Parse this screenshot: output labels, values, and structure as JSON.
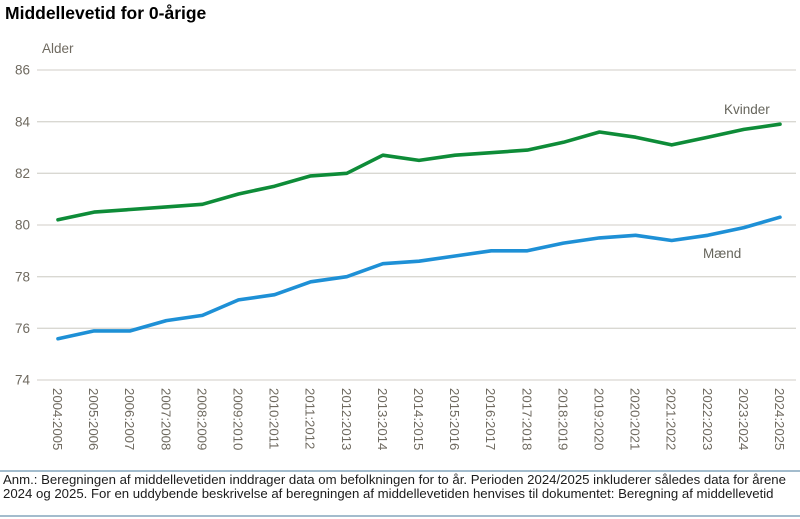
{
  "title": "Middellevetid for 0-årige",
  "footnote": "Anm.: Beregningen af middellevetiden inddrager data om befolkningen for to år. Perioden 2024/2025 inkluderer således data for årene 2024 og 2025. For en uddybende beskrivelse af beregningen af middellevetiden henvises til dokumentet: Beregning af middellevetid",
  "colors": {
    "kvinder_line": "#0e8c38",
    "maend_line": "#1e90d6",
    "gridline": "#d9d8d2",
    "axis_text": "#6f6a60",
    "series_label_text": "#66655c",
    "separator": "#a3bccd",
    "title_text": "#000000"
  },
  "chart_data": {
    "type": "line",
    "title": "Middellevetid for 0-årige",
    "xlabel": "",
    "ylabel": "Alder",
    "ylim": [
      74,
      86
    ],
    "y_ticks": [
      86,
      84,
      82,
      80,
      78,
      76,
      74
    ],
    "grid": "horizontal-only",
    "legend_position": "inline-right-of-lines",
    "categories": [
      "2004:2005",
      "2005:2006",
      "2006:2007",
      "2007:2008",
      "2008:2009",
      "2009:2010",
      "2010:2011",
      "2011:2012",
      "2012:2013",
      "2013:2014",
      "2014:2015",
      "2015:2016",
      "2016:2017",
      "2017:2018",
      "2018:2019",
      "2019:2020",
      "2020:2021",
      "2021:2022",
      "2022:2023",
      "2023:2024",
      "2024:2025"
    ],
    "series": [
      {
        "name": "Kvinder",
        "color": "#0e8c38",
        "values": [
          80.2,
          80.5,
          80.6,
          80.7,
          80.8,
          81.2,
          81.5,
          81.9,
          82.0,
          82.7,
          82.5,
          82.7,
          82.8,
          82.9,
          83.2,
          83.6,
          83.4,
          83.1,
          83.4,
          83.7,
          83.9
        ]
      },
      {
        "name": "Mænd",
        "color": "#1e90d6",
        "values": [
          75.6,
          75.9,
          75.9,
          76.3,
          76.5,
          77.1,
          77.3,
          77.8,
          78.0,
          78.5,
          78.6,
          78.8,
          79.0,
          79.0,
          79.3,
          79.5,
          79.6,
          79.4,
          79.6,
          79.9,
          80.3
        ]
      }
    ]
  }
}
